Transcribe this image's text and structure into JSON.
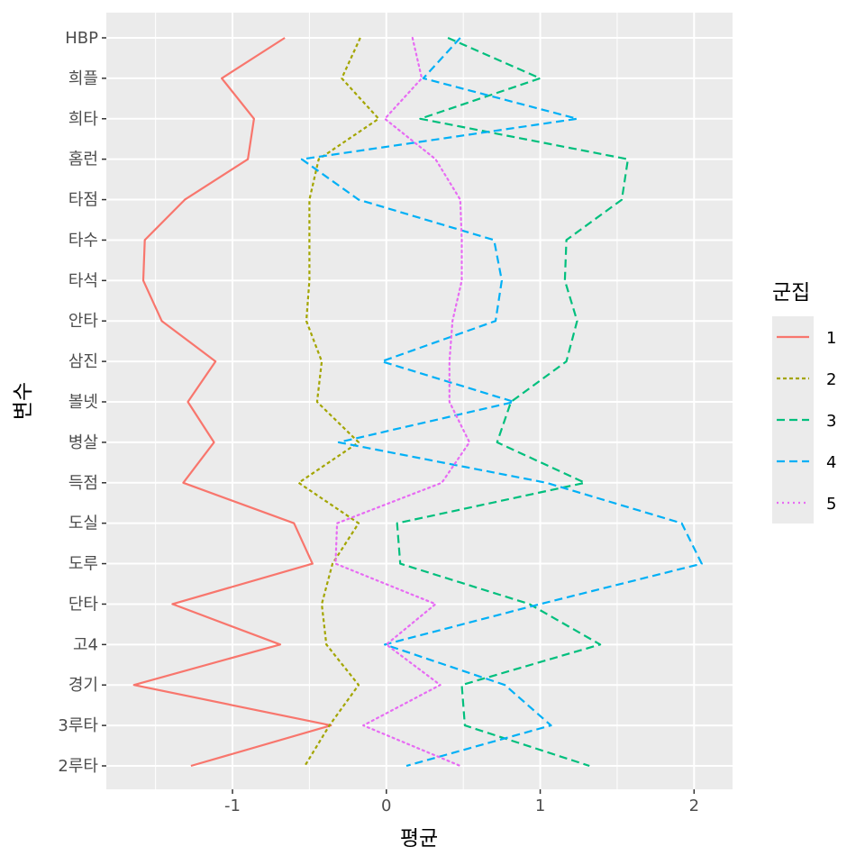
{
  "chart_data": {
    "type": "line",
    "orientation": "horizontal",
    "xlabel": "평균",
    "ylabel": "변수",
    "xlim": [
      -1.82,
      2.25
    ],
    "x_ticks": [
      -1,
      0,
      1,
      2
    ],
    "x_tick_labels": [
      "-1",
      "0",
      "1",
      "2"
    ],
    "categories": [
      "HBP",
      "희플",
      "희타",
      "홈런",
      "타점",
      "타수",
      "타석",
      "안타",
      "삼진",
      "볼넷",
      "병살",
      "득점",
      "도실",
      "도루",
      "단타",
      "고4",
      "경기",
      "3루타",
      "2루타"
    ],
    "grid": true,
    "legend": {
      "title": "군집",
      "position": "right"
    },
    "series": [
      {
        "name": "1",
        "color": "#F8766D",
        "dash": "solid",
        "values": [
          -0.66,
          -1.07,
          -0.86,
          -0.9,
          -1.31,
          -1.57,
          -1.58,
          -1.46,
          -1.11,
          -1.29,
          -1.12,
          -1.32,
          -0.6,
          -0.48,
          -1.39,
          -0.69,
          -1.64,
          -0.36,
          -1.27
        ]
      },
      {
        "name": "2",
        "color": "#A3A500",
        "dash": "short",
        "values": [
          -0.17,
          -0.29,
          -0.05,
          -0.44,
          -0.5,
          -0.5,
          -0.5,
          -0.52,
          -0.42,
          -0.45,
          -0.18,
          -0.57,
          -0.18,
          -0.35,
          -0.42,
          -0.39,
          -0.18,
          -0.37,
          -0.53
        ]
      },
      {
        "name": "3",
        "color": "#00BF7D",
        "dash": "long",
        "values": [
          0.4,
          1.0,
          0.22,
          1.57,
          1.53,
          1.17,
          1.16,
          1.24,
          1.17,
          0.81,
          0.72,
          1.29,
          0.07,
          0.09,
          0.93,
          1.39,
          0.49,
          0.51,
          1.32
        ]
      },
      {
        "name": "4",
        "color": "#00B0F6",
        "dash": "long",
        "values": [
          0.48,
          0.24,
          1.24,
          -0.55,
          -0.18,
          0.7,
          0.75,
          0.71,
          -0.03,
          0.83,
          -0.31,
          1.04,
          1.92,
          2.05,
          1.0,
          -0.01,
          0.77,
          1.07,
          0.13
        ]
      },
      {
        "name": "5",
        "color": "#E76BF3",
        "dash": "dot",
        "values": [
          0.17,
          0.23,
          -0.01,
          0.32,
          0.48,
          0.49,
          0.49,
          0.43,
          0.41,
          0.41,
          0.54,
          0.36,
          -0.32,
          -0.33,
          0.32,
          0.0,
          0.35,
          -0.15,
          0.48
        ]
      }
    ]
  }
}
